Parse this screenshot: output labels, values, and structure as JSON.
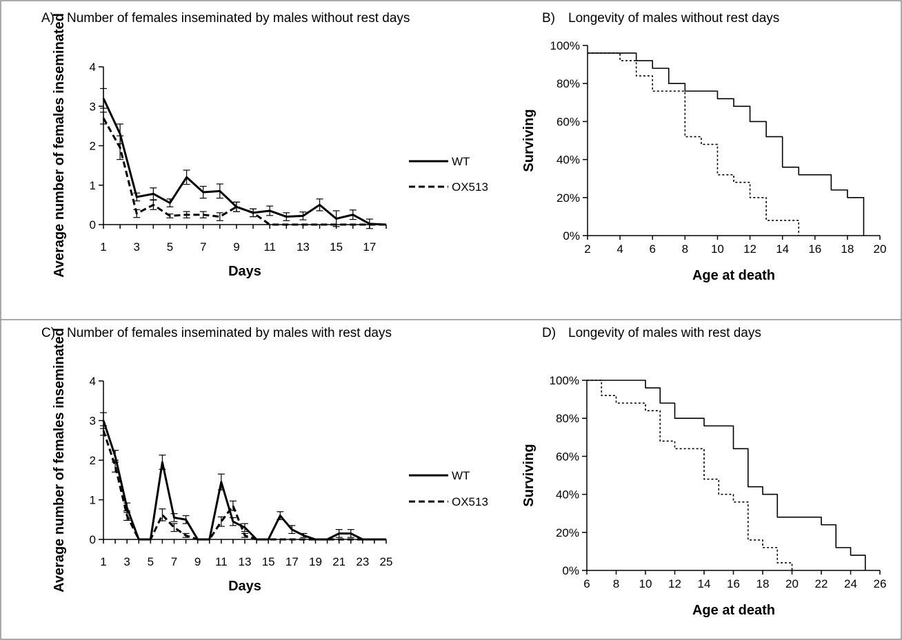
{
  "colors": {
    "line": "#000000",
    "frame": "#555555",
    "background": "#ffffff"
  },
  "chart_data": [
    {
      "id": "A",
      "type": "line",
      "label": "A)",
      "title": "Number of females inseminated by males without rest days",
      "xlabel": "Days",
      "ylabel": "Average number of females inseminated",
      "xlim": [
        1,
        18
      ],
      "ylim": [
        0,
        4
      ],
      "xticks": [
        1,
        3,
        5,
        7,
        9,
        11,
        13,
        15,
        17
      ],
      "yticks": [
        0,
        1,
        2,
        3,
        4
      ],
      "x": [
        1,
        2,
        3,
        4,
        5,
        6,
        7,
        8,
        9,
        10,
        11,
        12,
        13,
        14,
        15,
        16,
        17,
        18
      ],
      "legend": "right",
      "series": [
        {
          "name": "WT",
          "style": "solid",
          "values": [
            3.2,
            2.3,
            0.7,
            0.78,
            0.55,
            1.2,
            0.82,
            0.85,
            0.45,
            0.3,
            0.35,
            0.2,
            0.22,
            0.5,
            0.15,
            0.25,
            0.02,
            0
          ],
          "errors": [
            0.25,
            0.25,
            0.1,
            0.15,
            0.1,
            0.18,
            0.15,
            0.18,
            0.12,
            0.1,
            0.12,
            0.1,
            0.1,
            0.15,
            0.2,
            0.12,
            0.12,
            0
          ]
        },
        {
          "name": "OX513",
          "style": "dashed",
          "values": [
            2.7,
            1.95,
            0.28,
            0.5,
            0.22,
            0.25,
            0.25,
            0.2,
            0.45,
            0.3,
            0,
            0,
            0,
            0,
            0,
            0,
            0,
            0
          ],
          "errors": [
            0.15,
            0.3,
            0.1,
            0.12,
            0.05,
            0.08,
            0.08,
            0.1,
            0.12,
            0.1,
            0,
            0,
            0,
            0,
            0,
            0,
            0,
            0
          ]
        }
      ]
    },
    {
      "id": "B",
      "type": "line",
      "label": "B)",
      "title": "Longevity of males without rest days",
      "xlabel": "Age at death",
      "ylabel": "Surviving",
      "xlim": [
        2,
        20
      ],
      "ylim": [
        0,
        100
      ],
      "xticks": [
        2,
        4,
        6,
        8,
        10,
        12,
        14,
        16,
        18,
        20
      ],
      "yticks": [
        0,
        20,
        40,
        60,
        80,
        100
      ],
      "ytick_suffix": "%",
      "series": [
        {
          "style": "solid",
          "step": true,
          "x": [
            2,
            5,
            6,
            7,
            8,
            10,
            11,
            12,
            13,
            14,
            15,
            17,
            18,
            19
          ],
          "values": [
            96,
            92,
            88,
            80,
            76,
            72,
            68,
            60,
            52,
            36,
            32,
            24,
            20,
            0
          ]
        },
        {
          "style": "dotted",
          "step": true,
          "x": [
            2,
            4,
            5,
            6,
            8,
            9,
            10,
            11,
            12,
            13,
            15
          ],
          "values": [
            96,
            92,
            84,
            76,
            52,
            48,
            32,
            28,
            20,
            8,
            0
          ]
        }
      ]
    },
    {
      "id": "C",
      "type": "line",
      "label": "C)",
      "title": "Number of females inseminated by males with rest days",
      "xlabel": "Days",
      "ylabel": "Average number of females inseminated",
      "xlim": [
        1,
        25
      ],
      "ylim": [
        0,
        4
      ],
      "xticks": [
        1,
        3,
        5,
        7,
        9,
        11,
        13,
        15,
        17,
        19,
        21,
        23,
        25
      ],
      "yticks": [
        0,
        1,
        2,
        3,
        4
      ],
      "x": [
        1,
        2,
        3,
        4,
        5,
        6,
        7,
        8,
        9,
        10,
        11,
        12,
        13,
        14,
        15,
        16,
        17,
        18,
        19,
        20,
        21,
        22,
        23,
        24,
        25
      ],
      "legend": "right",
      "series": [
        {
          "name": "WT",
          "style": "solid",
          "values": [
            3.0,
            2.1,
            0.8,
            0,
            0,
            1.95,
            0.55,
            0.5,
            0,
            0,
            1.45,
            0.45,
            0.3,
            0,
            0,
            0.6,
            0.25,
            0.1,
            0,
            0,
            0.15,
            0.15,
            0,
            0,
            0
          ],
          "errors": [
            0.2,
            0.15,
            0.12,
            0,
            0,
            0.18,
            0.1,
            0.1,
            0,
            0,
            0.2,
            0.1,
            0.1,
            0,
            0,
            0.1,
            0.1,
            0.05,
            0,
            0,
            0.1,
            0.1,
            0,
            0,
            0
          ]
        },
        {
          "name": "OX513",
          "style": "dashed",
          "values": [
            2.75,
            1.85,
            0.6,
            0,
            0,
            0.62,
            0.3,
            0.1,
            0,
            0,
            0.45,
            0.85,
            0.1,
            0,
            0,
            0,
            0,
            0,
            0,
            0,
            0,
            0,
            0,
            0,
            0
          ],
          "errors": [
            0.12,
            0.15,
            0.12,
            0,
            0,
            0.15,
            0.1,
            0.05,
            0,
            0,
            0.12,
            0.12,
            0.05,
            0,
            0,
            0,
            0,
            0,
            0,
            0,
            0,
            0,
            0,
            0,
            0
          ]
        }
      ]
    },
    {
      "id": "D",
      "type": "line",
      "label": "D)",
      "title": "Longevity of males with rest days",
      "xlabel": "Age at death",
      "ylabel": "Surviving",
      "xlim": [
        6,
        26
      ],
      "ylim": [
        0,
        100
      ],
      "xticks": [
        6,
        8,
        10,
        12,
        14,
        16,
        18,
        20,
        22,
        24,
        26
      ],
      "yticks": [
        0,
        20,
        40,
        60,
        80,
        100
      ],
      "ytick_suffix": "%",
      "series": [
        {
          "style": "solid",
          "step": true,
          "x": [
            6,
            10,
            11,
            12,
            14,
            16,
            17,
            18,
            19,
            22,
            23,
            24,
            25
          ],
          "values": [
            100,
            96,
            88,
            80,
            76,
            64,
            44,
            40,
            28,
            24,
            12,
            8,
            0
          ]
        },
        {
          "style": "dotted",
          "step": true,
          "x": [
            6,
            7,
            8,
            10,
            11,
            12,
            14,
            15,
            16,
            17,
            18,
            19,
            20
          ],
          "values": [
            100,
            92,
            88,
            84,
            68,
            64,
            48,
            40,
            36,
            16,
            12,
            4,
            0
          ]
        }
      ]
    }
  ]
}
